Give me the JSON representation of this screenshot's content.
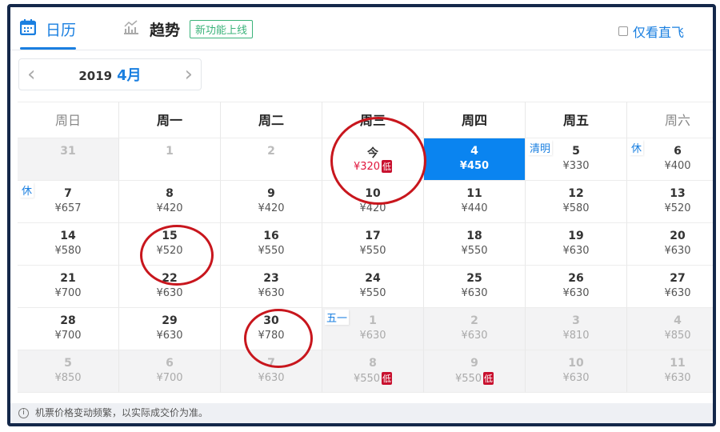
{
  "tabs": {
    "calendar": "日历",
    "trend": "趋势",
    "new_badge": "新功能上线",
    "direct_only": "仅看直飞"
  },
  "month_nav": {
    "year": "2019",
    "month": "4月",
    "prev": "‹",
    "next": "›"
  },
  "weekdays": [
    "周日",
    "周一",
    "周二",
    "周三",
    "周四",
    "周五",
    "周六"
  ],
  "weeks": [
    [
      {
        "day": "31",
        "price": "",
        "state": "shaded-muted"
      },
      {
        "day": "1",
        "price": "",
        "state": "muted"
      },
      {
        "day": "2",
        "price": "",
        "state": "muted"
      },
      {
        "day": "今",
        "price": "¥320",
        "low": true
      },
      {
        "day": "4",
        "price": "¥450",
        "state": "selected"
      },
      {
        "day": "5",
        "price": "¥330",
        "tag": "清明"
      },
      {
        "day": "6",
        "price": "¥400",
        "tag": "休"
      }
    ],
    [
      {
        "day": "7",
        "price": "¥657",
        "tag": "休"
      },
      {
        "day": "8",
        "price": "¥420"
      },
      {
        "day": "9",
        "price": "¥420"
      },
      {
        "day": "10",
        "price": "¥420"
      },
      {
        "day": "11",
        "price": "¥440"
      },
      {
        "day": "12",
        "price": "¥580"
      },
      {
        "day": "13",
        "price": "¥520"
      }
    ],
    [
      {
        "day": "14",
        "price": "¥580"
      },
      {
        "day": "15",
        "price": "¥520"
      },
      {
        "day": "16",
        "price": "¥550"
      },
      {
        "day": "17",
        "price": "¥550"
      },
      {
        "day": "18",
        "price": "¥550"
      },
      {
        "day": "19",
        "price": "¥630"
      },
      {
        "day": "20",
        "price": "¥630"
      }
    ],
    [
      {
        "day": "21",
        "price": "¥700"
      },
      {
        "day": "22",
        "price": "¥630"
      },
      {
        "day": "23",
        "price": "¥630"
      },
      {
        "day": "24",
        "price": "¥550"
      },
      {
        "day": "25",
        "price": "¥630"
      },
      {
        "day": "26",
        "price": "¥630"
      },
      {
        "day": "27",
        "price": "¥630"
      }
    ],
    [
      {
        "day": "28",
        "price": "¥700"
      },
      {
        "day": "29",
        "price": "¥630"
      },
      {
        "day": "30",
        "price": "¥780"
      },
      {
        "day": "1",
        "price": "¥630",
        "state": "shaded-muted",
        "tag": "五一"
      },
      {
        "day": "2",
        "price": "¥630",
        "state": "shaded-muted"
      },
      {
        "day": "3",
        "price": "¥810",
        "state": "shaded-muted"
      },
      {
        "day": "4",
        "price": "¥850",
        "state": "shaded-muted"
      }
    ],
    [
      {
        "day": "5",
        "price": "¥850",
        "state": "shaded-muted"
      },
      {
        "day": "6",
        "price": "¥700",
        "state": "shaded-muted"
      },
      {
        "day": "7",
        "price": "¥630",
        "state": "shaded-muted"
      },
      {
        "day": "8",
        "price": "¥550",
        "state": "shaded-muted",
        "low": true
      },
      {
        "day": "9",
        "price": "¥550",
        "state": "shaded-muted",
        "low": true
      },
      {
        "day": "10",
        "price": "¥630",
        "state": "shaded-muted"
      },
      {
        "day": "11",
        "price": "¥630",
        "state": "shaded-muted"
      }
    ]
  ],
  "low_label": "低",
  "footer": {
    "notice": "机票价格变动频繁，以实际成交价为准。"
  },
  "colors": {
    "accent": "#1a7fe0",
    "selected": "#0a84f0",
    "low": "#c8102e",
    "annotation": "#c8161d"
  }
}
